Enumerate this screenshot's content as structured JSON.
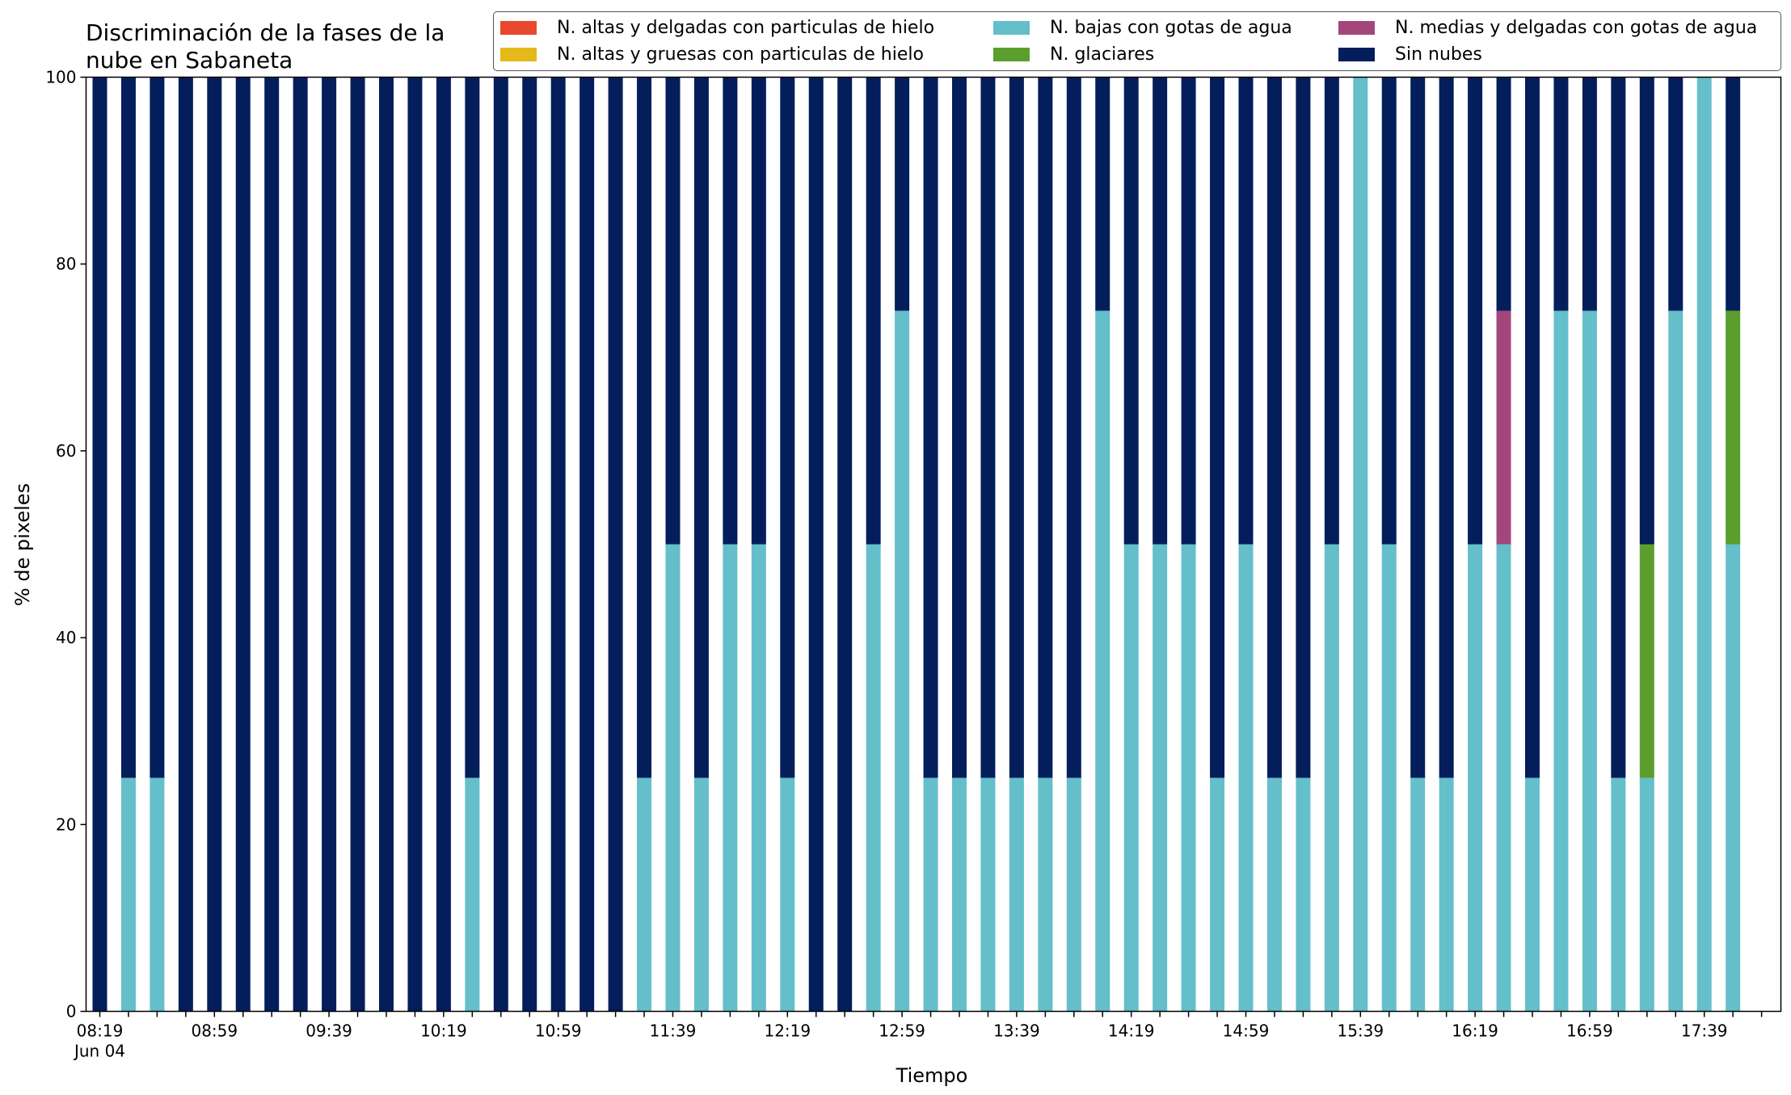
{
  "chart_data": {
    "type": "bar",
    "stacked": true,
    "title": "Discriminación de la fases de la\nnube en Sabaneta",
    "xlabel": "Tiempo",
    "ylabel": "% de pixeles",
    "ylim": [
      0,
      100
    ],
    "yticks": [
      0,
      20,
      40,
      60,
      80,
      100
    ],
    "grid": false,
    "legend_position": "top-right",
    "x": [
      "08:19",
      "08:29",
      "08:39",
      "08:49",
      "08:59",
      "09:09",
      "09:19",
      "09:29",
      "09:39",
      "09:49",
      "09:59",
      "10:09",
      "10:19",
      "10:29",
      "10:39",
      "10:49",
      "10:59",
      "11:09",
      "11:19",
      "11:29",
      "11:39",
      "11:49",
      "11:59",
      "12:09",
      "12:19",
      "12:29",
      "12:39",
      "12:49",
      "12:59",
      "13:09",
      "13:19",
      "13:29",
      "13:39",
      "13:49",
      "13:59",
      "14:09",
      "14:19",
      "14:29",
      "14:39",
      "14:49",
      "14:59",
      "15:09",
      "15:19",
      "15:29",
      "15:39",
      "15:49",
      "15:59",
      "16:09",
      "16:19",
      "16:29",
      "16:39",
      "16:49",
      "16:59",
      "17:09",
      "17:19",
      "17:29",
      "17:39",
      "17:49"
    ],
    "xtick_labels": [
      {
        "x": "08:19",
        "label": "08:19",
        "sublabel": "Jun 04"
      },
      {
        "x": "08:59",
        "label": "08:59"
      },
      {
        "x": "09:39",
        "label": "09:39"
      },
      {
        "x": "10:19",
        "label": "10:19"
      },
      {
        "x": "10:59",
        "label": "10:59"
      },
      {
        "x": "11:39",
        "label": "11:39"
      },
      {
        "x": "12:19",
        "label": "12:19"
      },
      {
        "x": "12:59",
        "label": "12:59"
      },
      {
        "x": "13:39",
        "label": "13:39"
      },
      {
        "x": "14:19",
        "label": "14:19"
      },
      {
        "x": "14:59",
        "label": "14:59"
      },
      {
        "x": "15:39",
        "label": "15:39"
      },
      {
        "x": "16:19",
        "label": "16:19"
      },
      {
        "x": "16:59",
        "label": "16:59"
      },
      {
        "x": "17:39",
        "label": "17:39"
      }
    ],
    "series": [
      {
        "name": "N. altas y delgadas con particulas de hielo",
        "color": "#e8492e",
        "values": [
          0,
          0,
          0,
          0,
          0,
          0,
          0,
          0,
          0,
          0,
          0,
          0,
          0,
          0,
          0,
          0,
          0,
          0,
          0,
          0,
          0,
          0,
          0,
          0,
          0,
          0,
          0,
          0,
          0,
          0,
          0,
          0,
          0,
          0,
          0,
          0,
          0,
          0,
          0,
          0,
          0,
          0,
          0,
          0,
          0,
          0,
          0,
          0,
          0,
          0,
          0,
          0,
          0,
          0,
          0,
          0,
          0,
          0
        ]
      },
      {
        "name": "N. altas y gruesas con particulas de hielo",
        "color": "#e5b81c",
        "values": [
          0,
          0,
          0,
          0,
          0,
          0,
          0,
          0,
          0,
          0,
          0,
          0,
          0,
          0,
          0,
          0,
          0,
          0,
          0,
          0,
          0,
          0,
          0,
          0,
          0,
          0,
          0,
          0,
          0,
          0,
          0,
          0,
          0,
          0,
          0,
          0,
          0,
          0,
          0,
          0,
          0,
          0,
          0,
          0,
          0,
          0,
          0,
          0,
          0,
          0,
          0,
          0,
          0,
          0,
          0,
          0,
          0,
          0
        ]
      },
      {
        "name": "N. bajas con gotas de agua",
        "color": "#64bfca",
        "values": [
          0,
          25,
          25,
          0,
          0,
          0,
          0,
          0,
          0,
          0,
          0,
          0,
          0,
          25,
          0,
          0,
          0,
          0,
          0,
          25,
          50,
          25,
          50,
          50,
          25,
          0,
          0,
          50,
          75,
          25,
          25,
          25,
          25,
          25,
          25,
          75,
          50,
          50,
          50,
          25,
          50,
          25,
          25,
          50,
          100,
          50,
          25,
          25,
          50,
          50,
          25,
          75,
          75,
          25,
          25,
          75,
          100,
          50
        ]
      },
      {
        "name": "N. glaciares",
        "color": "#5c9e2e",
        "values": [
          0,
          0,
          0,
          0,
          0,
          0,
          0,
          0,
          0,
          0,
          0,
          0,
          0,
          0,
          0,
          0,
          0,
          0,
          0,
          0,
          0,
          0,
          0,
          0,
          0,
          0,
          0,
          0,
          0,
          0,
          0,
          0,
          0,
          0,
          0,
          0,
          0,
          0,
          0,
          0,
          0,
          0,
          0,
          0,
          0,
          0,
          0,
          0,
          0,
          0,
          0,
          0,
          0,
          0,
          25,
          0,
          0,
          25
        ]
      },
      {
        "name": "N. medias y delgadas con gotas de agua",
        "color": "#a3467b",
        "values": [
          0,
          0,
          0,
          0,
          0,
          0,
          0,
          0,
          0,
          0,
          0,
          0,
          0,
          0,
          0,
          0,
          0,
          0,
          0,
          0,
          0,
          0,
          0,
          0,
          0,
          0,
          0,
          0,
          0,
          0,
          0,
          0,
          0,
          0,
          0,
          0,
          0,
          0,
          0,
          0,
          0,
          0,
          0,
          0,
          0,
          0,
          0,
          0,
          0,
          25,
          0,
          0,
          0,
          0,
          0,
          0,
          0,
          0
        ]
      },
      {
        "name": "Sin nubes",
        "color": "#041e5c",
        "values": [
          100,
          75,
          75,
          100,
          100,
          100,
          100,
          100,
          100,
          100,
          100,
          100,
          100,
          75,
          100,
          100,
          100,
          100,
          100,
          75,
          50,
          75,
          50,
          50,
          75,
          100,
          100,
          50,
          25,
          75,
          75,
          75,
          75,
          75,
          75,
          25,
          50,
          50,
          50,
          75,
          50,
          75,
          75,
          50,
          0,
          50,
          75,
          75,
          50,
          25,
          75,
          25,
          25,
          75,
          50,
          25,
          0,
          25
        ]
      }
    ],
    "legend_order": [
      0,
      1,
      2,
      3,
      4,
      5
    ]
  }
}
